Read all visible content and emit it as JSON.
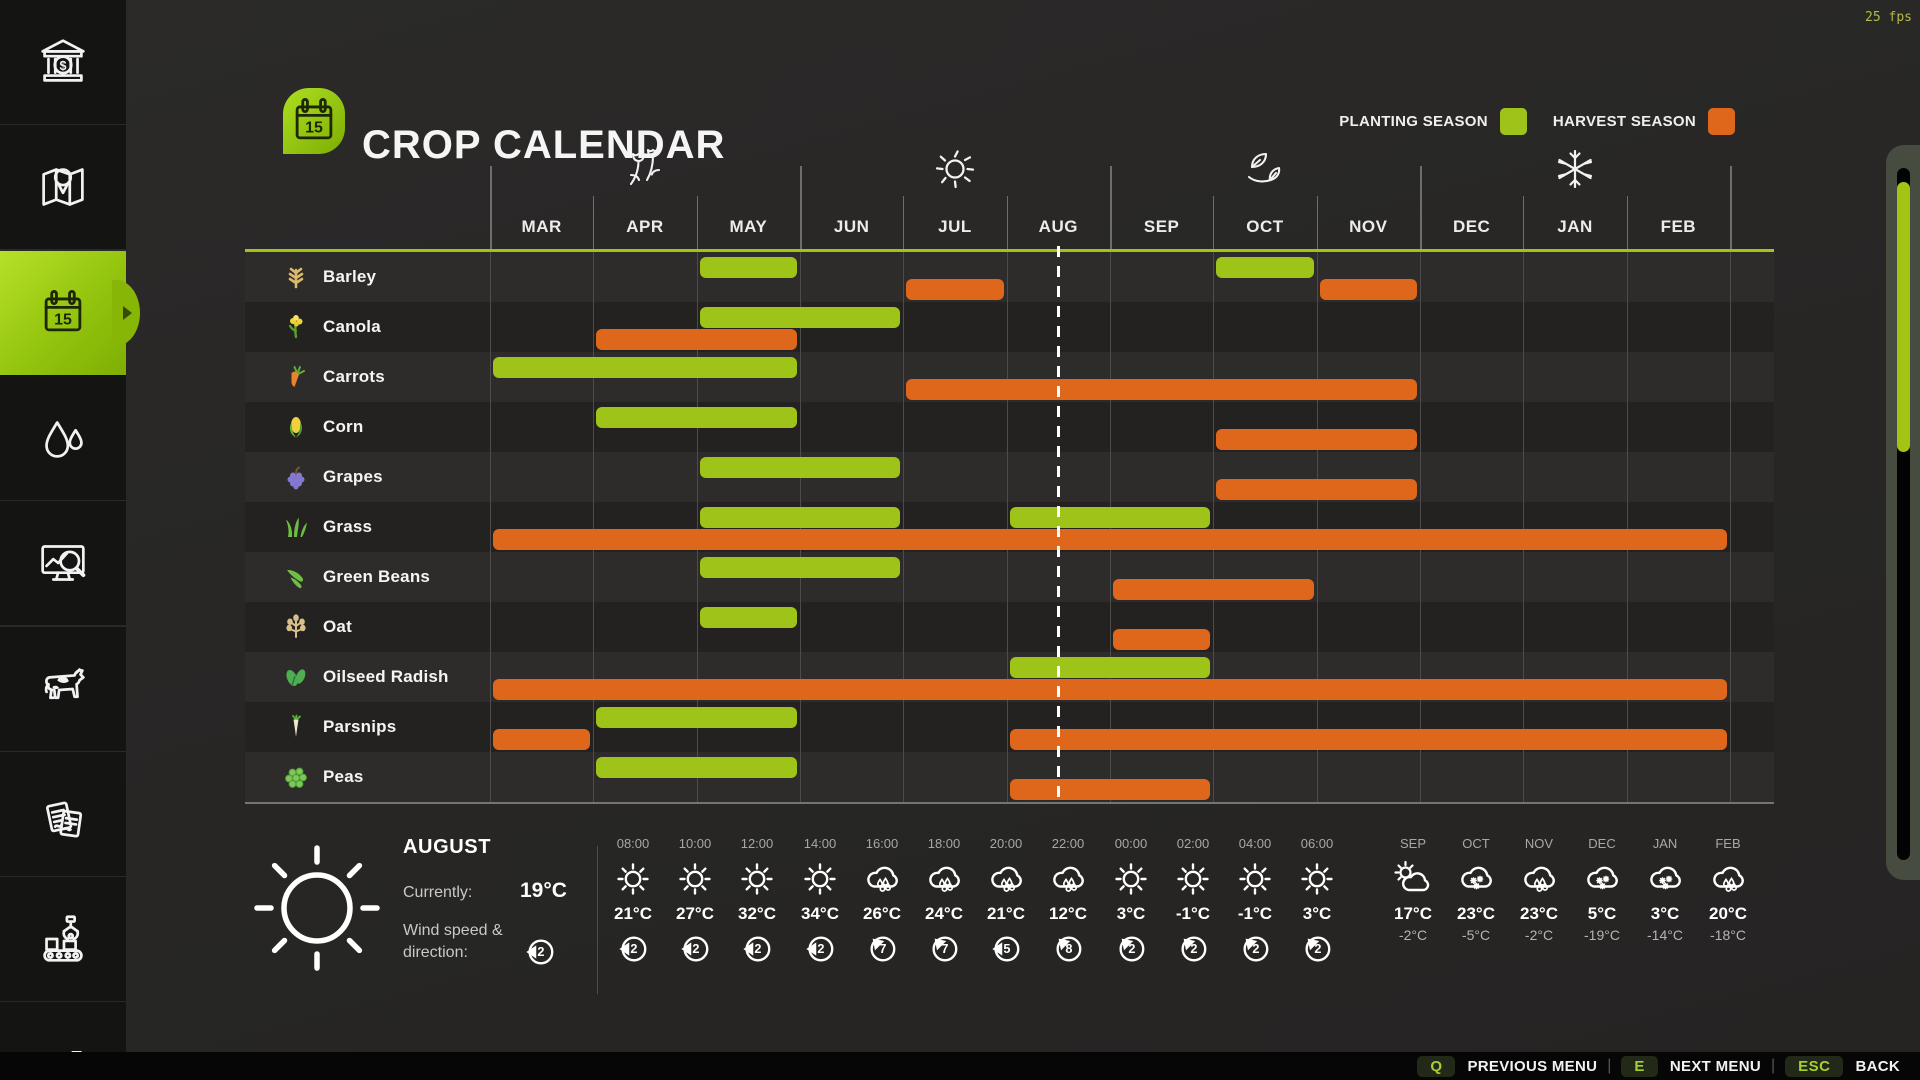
{
  "fps": "25 fps",
  "header": {
    "title": "CROP CALENDAR",
    "calendar_day": "15",
    "legend": [
      {
        "label": "PLANTING SEASON",
        "color": "#9ec41a"
      },
      {
        "label": "HARVEST SEASON",
        "color": "#de671b"
      }
    ]
  },
  "sidebar": {
    "items": [
      {
        "id": "finances",
        "icon": "bank-icon",
        "selected": false
      },
      {
        "id": "map",
        "icon": "map-icon",
        "selected": false
      },
      {
        "id": "crop-calendar",
        "icon": "calendar-icon",
        "selected": true
      },
      {
        "id": "water",
        "icon": "water-drops-icon",
        "selected": false
      },
      {
        "id": "prices",
        "icon": "market-analysis-icon",
        "selected": false
      },
      {
        "id": "animals",
        "icon": "animals-icon",
        "selected": false
      },
      {
        "id": "contracts",
        "icon": "contracts-icon",
        "selected": false
      },
      {
        "id": "production",
        "icon": "production-icon",
        "selected": false
      },
      {
        "id": "statistics",
        "icon": "statistics-icon",
        "selected": false
      }
    ]
  },
  "chart_data": {
    "type": "gantt",
    "months": [
      "MAR",
      "APR",
      "MAY",
      "JUN",
      "JUL",
      "AUG",
      "SEP",
      "OCT",
      "NOV",
      "DEC",
      "JAN",
      "FEB"
    ],
    "season_icons": [
      {
        "name": "spring-flowers-icon"
      },
      {
        "name": "summer-sun-icon"
      },
      {
        "name": "autumn-leaves-icon"
      },
      {
        "name": "winter-snowflake-icon"
      }
    ],
    "current_date": {
      "month": "AUG",
      "fraction": 0.5
    },
    "series_colors": {
      "planting": "#9ec41a",
      "harvest": "#de671b"
    },
    "crops": [
      {
        "name": "Barley",
        "icon": "barley-icon",
        "planting": [
          [
            2,
            3
          ],
          [
            7,
            8
          ]
        ],
        "harvest": [
          [
            4,
            5
          ],
          [
            8,
            9
          ]
        ]
      },
      {
        "name": "Canola",
        "icon": "canola-icon",
        "planting": [
          [
            2,
            4
          ]
        ],
        "harvest": [
          [
            1,
            3
          ]
        ]
      },
      {
        "name": "Carrots",
        "icon": "carrots-icon",
        "planting": [
          [
            0,
            3
          ]
        ],
        "harvest": [
          [
            4,
            9
          ]
        ]
      },
      {
        "name": "Corn",
        "icon": "corn-icon",
        "planting": [
          [
            1,
            3
          ]
        ],
        "harvest": [
          [
            7,
            9
          ]
        ]
      },
      {
        "name": "Grapes",
        "icon": "grapes-icon",
        "planting": [
          [
            2,
            4
          ]
        ],
        "harvest": [
          [
            7,
            9
          ]
        ]
      },
      {
        "name": "Grass",
        "icon": "grass-icon",
        "planting": [
          [
            2,
            4
          ],
          [
            5,
            7
          ]
        ],
        "harvest": [
          [
            0,
            12
          ]
        ]
      },
      {
        "name": "Green Beans",
        "icon": "green-beans-icon",
        "planting": [
          [
            2,
            4
          ]
        ],
        "harvest": [
          [
            6,
            8
          ]
        ]
      },
      {
        "name": "Oat",
        "icon": "oat-icon",
        "planting": [
          [
            2,
            3
          ]
        ],
        "harvest": [
          [
            6,
            7
          ]
        ]
      },
      {
        "name": "Oilseed Radish",
        "icon": "oilseed-radish-icon",
        "planting": [
          [
            5,
            7
          ]
        ],
        "harvest": [
          [
            0,
            12
          ]
        ]
      },
      {
        "name": "Parsnips",
        "icon": "parsnips-icon",
        "planting": [
          [
            1,
            3
          ]
        ],
        "harvest": [
          [
            0,
            1
          ],
          [
            5,
            12
          ]
        ]
      },
      {
        "name": "Peas",
        "icon": "peas-icon",
        "planting": [
          [
            1,
            3
          ]
        ],
        "harvest": [
          [
            5,
            7
          ]
        ]
      }
    ]
  },
  "weather": {
    "month": "AUGUST",
    "currently_label": "Currently:",
    "current_temp": "19°C",
    "wind_label_1": "Wind speed &",
    "wind_label_2": "direction:",
    "wind_value": "2",
    "wind_dir": "left",
    "hourly": [
      {
        "time": "08:00",
        "icon": "sun-icon",
        "temp": "21°C",
        "wind": "2",
        "wind_dir": "left"
      },
      {
        "time": "10:00",
        "icon": "sun-icon",
        "temp": "27°C",
        "wind": "2",
        "wind_dir": "left"
      },
      {
        "time": "12:00",
        "icon": "sun-icon",
        "temp": "32°C",
        "wind": "2",
        "wind_dir": "left"
      },
      {
        "time": "14:00",
        "icon": "sun-icon",
        "temp": "34°C",
        "wind": "2",
        "wind_dir": "left"
      },
      {
        "time": "16:00",
        "icon": "rain-cloud-icon",
        "temp": "26°C",
        "wind": "7",
        "wind_dir": "up-left"
      },
      {
        "time": "18:00",
        "icon": "rain-cloud-icon",
        "temp": "24°C",
        "wind": "7",
        "wind_dir": "up-left"
      },
      {
        "time": "20:00",
        "icon": "rain-cloud-icon",
        "temp": "21°C",
        "wind": "5",
        "wind_dir": "left"
      },
      {
        "time": "22:00",
        "icon": "rain-cloud-icon",
        "temp": "12°C",
        "wind": "8",
        "wind_dir": "up-left"
      },
      {
        "time": "00:00",
        "icon": "sun-icon",
        "temp": "3°C",
        "wind": "2",
        "wind_dir": "up-left"
      },
      {
        "time": "02:00",
        "icon": "sun-icon",
        "temp": "-1°C",
        "wind": "2",
        "wind_dir": "up-left"
      },
      {
        "time": "04:00",
        "icon": "sun-icon",
        "temp": "-1°C",
        "wind": "2",
        "wind_dir": "up-left"
      },
      {
        "time": "06:00",
        "icon": "sun-icon",
        "temp": "3°C",
        "wind": "2",
        "wind_dir": "up-left"
      }
    ],
    "monthly": [
      {
        "month": "SEP",
        "icon": "partly-cloudy-icon",
        "high": "17°C",
        "low": "-2°C"
      },
      {
        "month": "OCT",
        "icon": "snow-cloud-icon",
        "high": "23°C",
        "low": "-5°C"
      },
      {
        "month": "NOV",
        "icon": "rain-cloud-icon",
        "high": "23°C",
        "low": "-2°C"
      },
      {
        "month": "DEC",
        "icon": "snow-cloud-icon",
        "high": "5°C",
        "low": "-19°C"
      },
      {
        "month": "JAN",
        "icon": "snow-cloud-icon",
        "high": "3°C",
        "low": "-14°C"
      },
      {
        "month": "FEB",
        "icon": "rain-cloud-icon",
        "high": "20°C",
        "low": "-18°C"
      }
    ]
  },
  "footer": {
    "actions": [
      {
        "key": "Q",
        "label": "PREVIOUS MENU"
      },
      {
        "key": "E",
        "label": "NEXT MENU"
      },
      {
        "key": "ESC",
        "label": "BACK"
      }
    ]
  }
}
